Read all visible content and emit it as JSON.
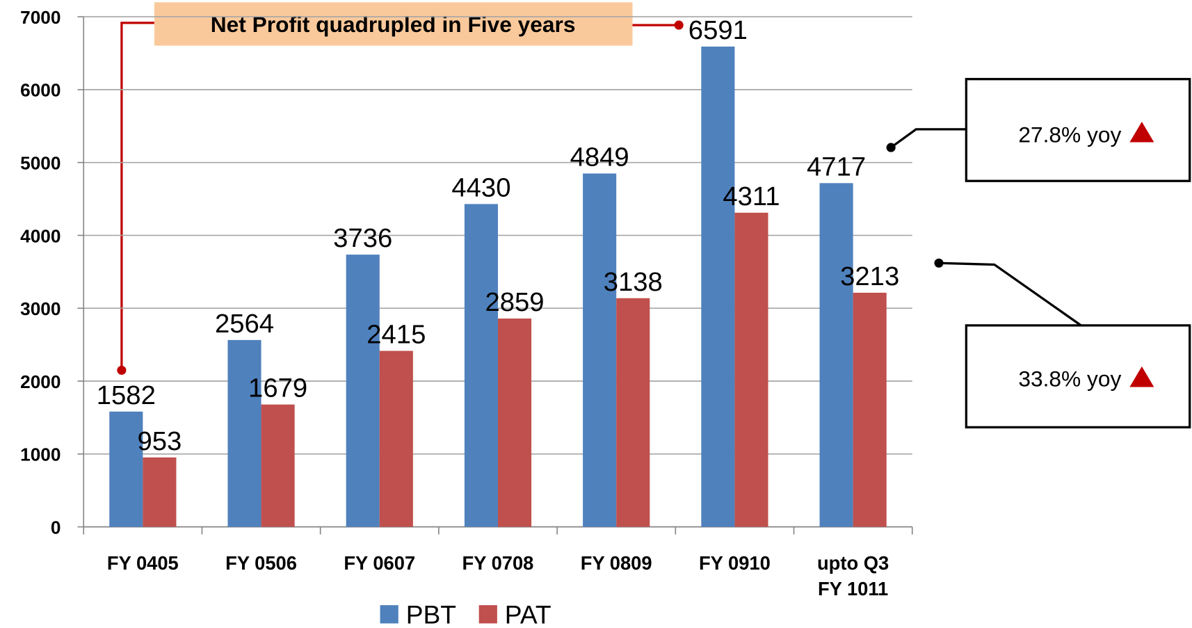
{
  "chart_data": {
    "type": "bar",
    "categories": [
      "FY 0405",
      "FY 0506",
      "FY 0607",
      "FY 0708",
      "FY 0809",
      "FY 0910",
      "upto Q3\nFY 1011"
    ],
    "series": [
      {
        "name": "PBT",
        "color": "#4f81bd",
        "values": [
          1582,
          2564,
          3736,
          4430,
          4849,
          6591,
          4717
        ]
      },
      {
        "name": "PAT",
        "color": "#c0504d",
        "values": [
          953,
          1679,
          2415,
          2859,
          3138,
          4311,
          3213
        ]
      }
    ],
    "ylim": [
      0,
      7000
    ],
    "yticks": [
      0,
      1000,
      2000,
      3000,
      4000,
      5000,
      6000,
      7000
    ],
    "grid": true,
    "legend": "bottom",
    "annotations": [
      "Net Profit quadrupled in Five years",
      "27.8% yoy",
      "33.8% yoy"
    ]
  }
}
